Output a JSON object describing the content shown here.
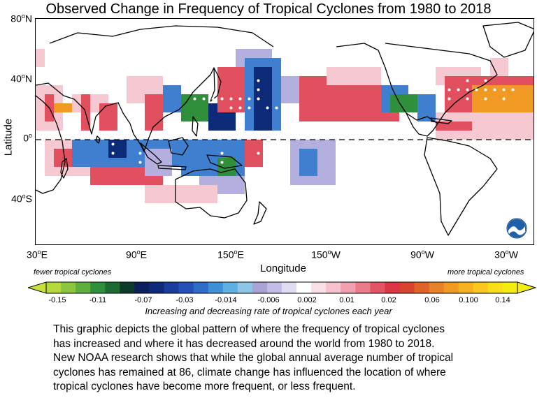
{
  "title": "Observed Change in Frequency of Tropical Cyclones from 1980 to 2018",
  "axes": {
    "ylabel": "Latitude",
    "xlabel": "Longitude",
    "yticks": [
      {
        "v": "80",
        "u": "N"
      },
      {
        "v": "40",
        "u": "N"
      },
      {
        "v": "0",
        "u": ""
      },
      {
        "v": "40",
        "u": "S"
      }
    ],
    "xticks": [
      {
        "v": "30",
        "u": "E"
      },
      {
        "v": "90",
        "u": "E"
      },
      {
        "v": "150",
        "u": "E"
      },
      {
        "v": "150",
        "u": "W"
      },
      {
        "v": "90",
        "u": "W"
      },
      {
        "v": "30",
        "u": "W"
      }
    ]
  },
  "colorbar": {
    "left_note": "fewer tropical cyclones",
    "right_note": "more tropical cyclones",
    "tick_labels": [
      "-0.15",
      "-0.11",
      "-0.07",
      "-0.03",
      "-0.014",
      "-0.006",
      "0.002",
      "0.01",
      "0.02",
      "0.06",
      "0.100",
      "0.14"
    ],
    "caption": "Increasing and decreasing rate of tropical cyclones each year",
    "colors": [
      "#b5d93c",
      "#8cc63f",
      "#5fae3f",
      "#2f8f3a",
      "#1d6b33",
      "#0d3b2a",
      "#0a1f5c",
      "#102a7a",
      "#1a3c9a",
      "#2450b8",
      "#2e6cc8",
      "#3f8fd6",
      "#5fb0e0",
      "#8ec6e8",
      "#a9a3d6",
      "#c3bde6",
      "#e0dcf2",
      "#ffffff",
      "#f9e0e6",
      "#f4c1cc",
      "#f0a0ae",
      "#ea7b8a",
      "#e35566",
      "#dc3545",
      "#d9442e",
      "#e0632a",
      "#e8822a",
      "#f09a24",
      "#f5b21e",
      "#f8c91c",
      "#f9de1a",
      "#f4ee10"
    ]
  },
  "description": [
    "This graphic depicts the global pattern of where the frequency of tropical cyclones",
    "has increased and where it has decreased around the world from 1980 to 2018.",
    "New NOAA research shows that while the global annual average number of tropical",
    "cyclones has remained at 86, climate change has influenced the location of where",
    "tropical cyclones have become more frequent, or less frequent."
  ],
  "map_cells": [
    {
      "r": [
        1,
        3
      ],
      "c": [
        0,
        1
      ],
      "k": "p"
    },
    {
      "r": [
        5,
        10
      ],
      "c": [
        0,
        3
      ],
      "k": "p"
    },
    {
      "r": [
        6,
        9
      ],
      "c": [
        1,
        2
      ],
      "k": "r"
    },
    {
      "r": [
        7,
        8
      ],
      "c": [
        2,
        4
      ],
      "k": "o"
    },
    {
      "r": [
        6,
        8
      ],
      "c": [
        4,
        8
      ],
      "k": "p"
    },
    {
      "r": [
        6,
        10
      ],
      "c": [
        5,
        6
      ],
      "k": "r"
    },
    {
      "r": [
        7,
        10
      ],
      "c": [
        7,
        9
      ],
      "k": "r"
    },
    {
      "r": [
        4,
        7
      ],
      "c": [
        10,
        14
      ],
      "k": "p"
    },
    {
      "r": [
        6,
        10
      ],
      "c": [
        12,
        14
      ],
      "k": "r"
    },
    {
      "r": [
        5,
        8
      ],
      "c": [
        14,
        16
      ],
      "k": "b"
    },
    {
      "r": [
        6,
        9
      ],
      "c": [
        16,
        19
      ],
      "k": "g"
    },
    {
      "r": [
        7,
        10
      ],
      "c": [
        19,
        22
      ],
      "k": "n"
    },
    {
      "r": [
        3,
        8
      ],
      "c": [
        20,
        23
      ],
      "k": "r"
    },
    {
      "r": [
        1,
        3
      ],
      "c": [
        22,
        26
      ],
      "k": "l"
    },
    {
      "r": [
        2,
        10
      ],
      "c": [
        23,
        27
      ],
      "k": "b"
    },
    {
      "r": [
        3,
        10
      ],
      "c": [
        24,
        26
      ],
      "k": "n"
    },
    {
      "r": [
        4,
        7
      ],
      "c": [
        27,
        29
      ],
      "k": "l"
    },
    {
      "r": [
        4,
        9
      ],
      "c": [
        29,
        32
      ],
      "k": "r"
    },
    {
      "r": [
        3,
        7
      ],
      "c": [
        32,
        38
      ],
      "k": "p"
    },
    {
      "r": [
        5,
        9
      ],
      "c": [
        32,
        40
      ],
      "k": "r"
    },
    {
      "r": [
        5,
        8
      ],
      "c": [
        38,
        41
      ],
      "k": "b"
    },
    {
      "r": [
        6,
        8
      ],
      "c": [
        39,
        42
      ],
      "k": "g"
    },
    {
      "r": [
        6,
        9
      ],
      "c": [
        42,
        44
      ],
      "k": "b"
    },
    {
      "r": [
        3,
        5
      ],
      "c": [
        44,
        49
      ],
      "k": "p"
    },
    {
      "r": [
        4,
        8
      ],
      "c": [
        45,
        56
      ],
      "k": "r"
    },
    {
      "r": [
        5,
        8
      ],
      "c": [
        48,
        55
      ],
      "k": "o"
    },
    {
      "r": [
        2,
        4
      ],
      "c": [
        50,
        52
      ],
      "k": "p"
    },
    {
      "r": [
        8,
        11
      ],
      "c": [
        44,
        56
      ],
      "k": "p"
    },
    {
      "r": [
        9,
        10
      ],
      "c": [
        44,
        48
      ],
      "k": "r"
    },
    {
      "r": [
        11,
        15
      ],
      "c": [
        1,
        6
      ],
      "k": "p"
    },
    {
      "r": [
        12,
        14
      ],
      "c": [
        2,
        4
      ],
      "k": "r"
    },
    {
      "r": [
        11,
        14
      ],
      "c": [
        4,
        6
      ],
      "k": "b"
    },
    {
      "r": [
        11,
        14
      ],
      "c": [
        6,
        16
      ],
      "k": "b"
    },
    {
      "r": [
        11,
        13
      ],
      "c": [
        8,
        10
      ],
      "k": "n"
    },
    {
      "r": [
        14,
        16
      ],
      "c": [
        6,
        14
      ],
      "k": "r"
    },
    {
      "r": [
        12,
        15
      ],
      "c": [
        12,
        15
      ],
      "k": "l"
    },
    {
      "r": [
        11,
        15
      ],
      "c": [
        16,
        23
      ],
      "k": "b"
    },
    {
      "r": [
        13,
        15
      ],
      "c": [
        20,
        22
      ],
      "k": "g"
    },
    {
      "r": [
        15,
        17
      ],
      "c": [
        18,
        23
      ],
      "k": "l"
    },
    {
      "r": [
        11,
        14
      ],
      "c": [
        23,
        25
      ],
      "k": "r"
    },
    {
      "r": [
        11,
        16
      ],
      "c": [
        28,
        33
      ],
      "k": "l"
    },
    {
      "r": [
        12,
        15
      ],
      "c": [
        29,
        31
      ],
      "k": "b"
    },
    {
      "r": [
        16,
        18
      ],
      "c": [
        12,
        20
      ],
      "k": "p"
    }
  ],
  "map_dots": [
    [
      1,
      5
    ],
    [
      1,
      6
    ],
    [
      2,
      5
    ],
    [
      2,
      6
    ],
    [
      6,
      17
    ],
    [
      6,
      18
    ],
    [
      6,
      19
    ],
    [
      6,
      20
    ],
    [
      6,
      21
    ],
    [
      6,
      22
    ],
    [
      6,
      23
    ],
    [
      6,
      24
    ],
    [
      7,
      21
    ],
    [
      7,
      22
    ],
    [
      7,
      23
    ],
    [
      7,
      25
    ],
    [
      7,
      26
    ],
    [
      7,
      27
    ],
    [
      4,
      24
    ],
    [
      5,
      24
    ],
    [
      6,
      24
    ],
    [
      10,
      8
    ],
    [
      11,
      8
    ],
    [
      12,
      8
    ],
    [
      12,
      11
    ],
    [
      13,
      11
    ],
    [
      12,
      20
    ],
    [
      13,
      20
    ],
    [
      12,
      24
    ],
    [
      3,
      43
    ],
    [
      4,
      43
    ],
    [
      5,
      44
    ],
    [
      5,
      45
    ],
    [
      5,
      46
    ],
    [
      5,
      47
    ],
    [
      5,
      48
    ],
    [
      5,
      49
    ],
    [
      5,
      50
    ],
    [
      5,
      51
    ],
    [
      5,
      52
    ],
    [
      6,
      45
    ],
    [
      6,
      47
    ],
    [
      6,
      49
    ],
    [
      6,
      51
    ],
    [
      4,
      47
    ],
    [
      4,
      49
    ]
  ]
}
